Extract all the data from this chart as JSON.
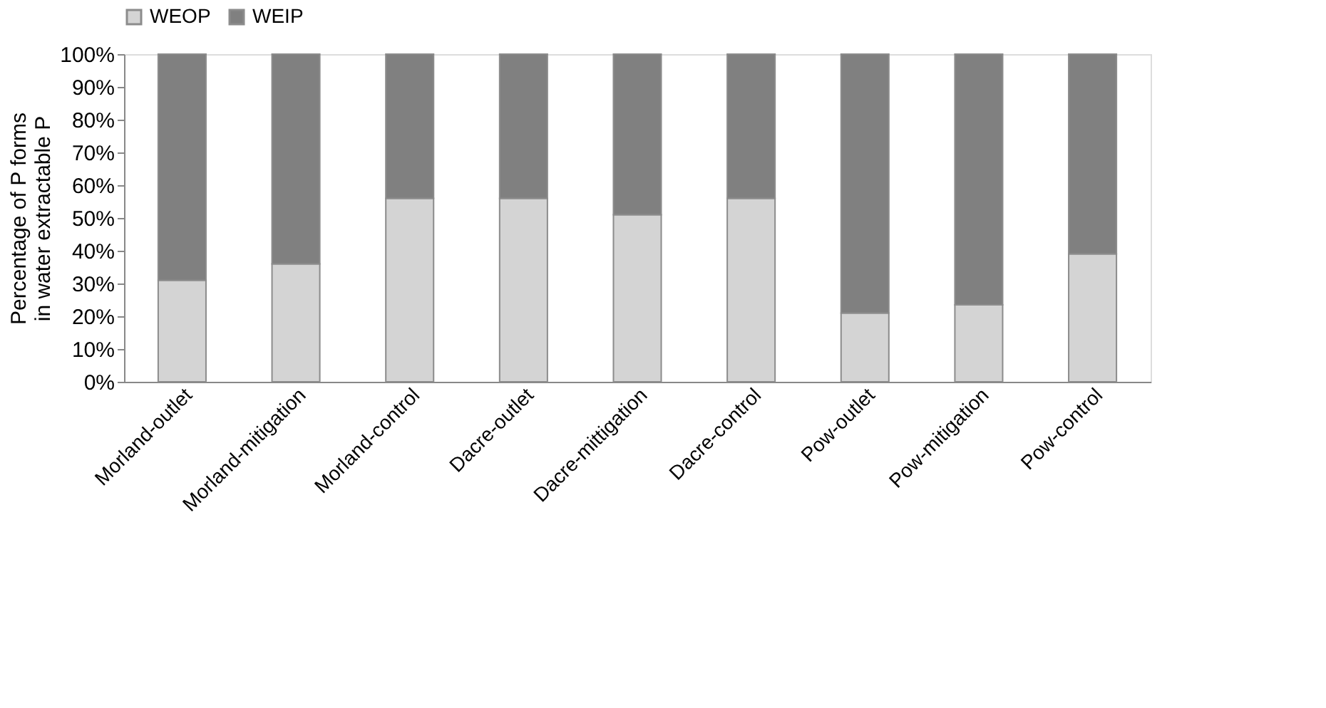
{
  "chart_data": {
    "type": "bar",
    "stacked": true,
    "ylabel": "Percentage of P forms in water extractable P",
    "categories": [
      "Morland-outlet",
      "Morland-mitigation",
      "Morland-control",
      "Dacre-outlet",
      "Dacre-mittigation",
      "Dacre-control",
      "Pow-outlet",
      "Pow-mitigation",
      "Pow-control"
    ],
    "series": [
      {
        "name": "WEOP",
        "color": "#d4d4d4",
        "values": [
          31,
          36,
          56,
          56,
          51,
          56,
          21,
          23.5,
          39
        ]
      },
      {
        "name": "WEIP",
        "color": "#808080",
        "values": [
          69,
          64,
          44,
          44,
          49,
          44,
          79,
          76.5,
          61
        ]
      }
    ],
    "ylim": [
      0,
      100
    ],
    "yticks": [
      {
        "value": 0,
        "label": "0%"
      },
      {
        "value": 10,
        "label": "10%"
      },
      {
        "value": 20,
        "label": "20%"
      },
      {
        "value": 30,
        "label": "30%"
      },
      {
        "value": 40,
        "label": "40%"
      },
      {
        "value": 50,
        "label": "50%"
      },
      {
        "value": 60,
        "label": "60%"
      },
      {
        "value": 70,
        "label": "70%"
      },
      {
        "value": 80,
        "label": "80%"
      },
      {
        "value": 90,
        "label": "90%"
      },
      {
        "value": 100,
        "label": "100%"
      }
    ],
    "grid": false,
    "legend": "top"
  }
}
